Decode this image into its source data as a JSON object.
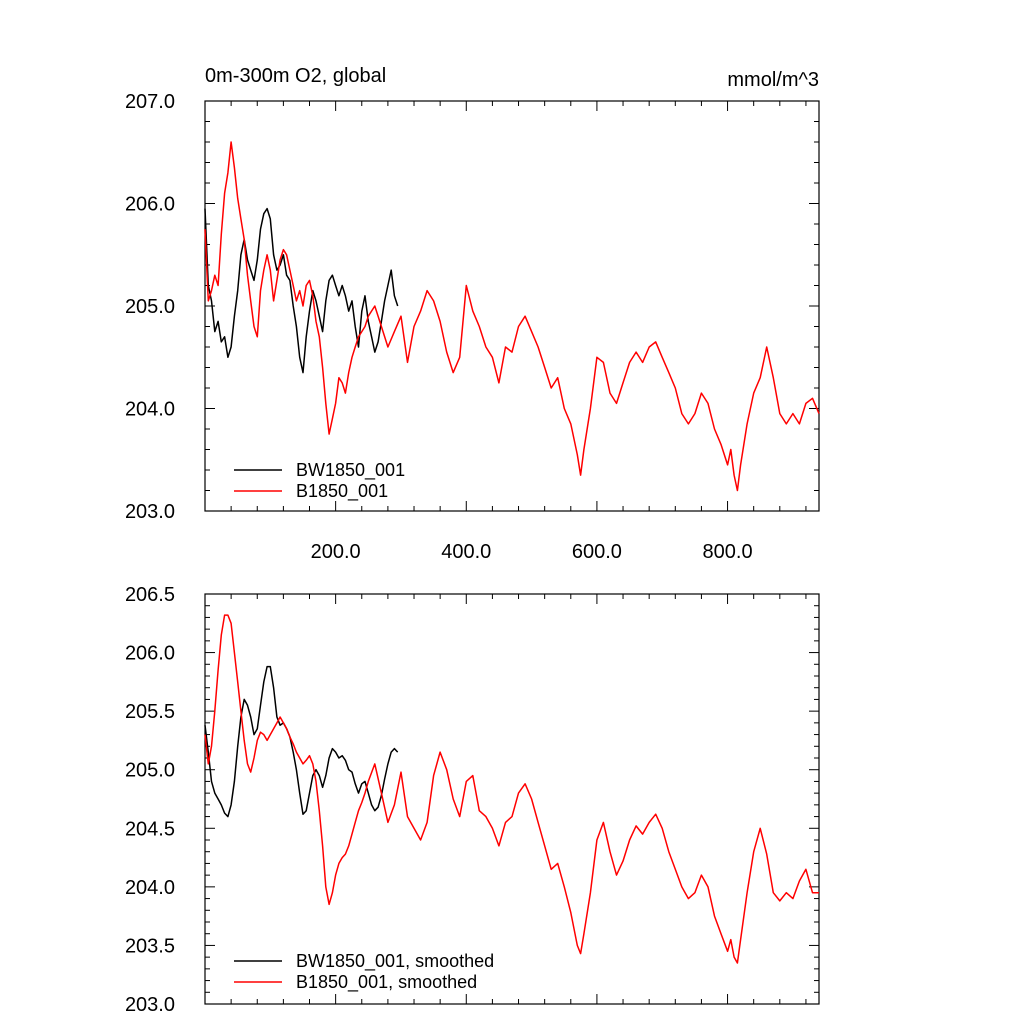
{
  "chart_data": [
    {
      "type": "line",
      "title": "0m-300m O2, global",
      "units": "mmol/m^3",
      "xlim": [
        0,
        940
      ],
      "ylim": [
        203.0,
        207.0
      ],
      "x_ticks": [
        "200.0",
        "400.0",
        "600.0",
        "800.0"
      ],
      "y_ticks": [
        "203.0",
        "204.0",
        "205.0",
        "206.0",
        "207.0"
      ],
      "legend_position": "bottom-left",
      "series": [
        {
          "name": "BW1850_001",
          "color": "#000000",
          "x": [
            0,
            5,
            10,
            15,
            20,
            25,
            30,
            35,
            40,
            45,
            50,
            55,
            60,
            65,
            70,
            75,
            80,
            85,
            90,
            95,
            100,
            105,
            110,
            115,
            120,
            125,
            130,
            135,
            140,
            145,
            150,
            155,
            160,
            165,
            170,
            175,
            180,
            185,
            190,
            195,
            200,
            205,
            210,
            215,
            220,
            225,
            230,
            235,
            240,
            245,
            250,
            255,
            260,
            265,
            270,
            275,
            280,
            285,
            290,
            295
          ],
          "values": [
            205.95,
            205.2,
            205.05,
            204.75,
            204.85,
            204.65,
            204.7,
            204.5,
            204.6,
            204.9,
            205.15,
            205.5,
            205.65,
            205.45,
            205.35,
            205.25,
            205.45,
            205.75,
            205.9,
            205.95,
            205.85,
            205.5,
            205.35,
            205.4,
            205.5,
            205.3,
            205.25,
            205.0,
            204.8,
            204.5,
            204.35,
            204.7,
            204.95,
            205.15,
            205.05,
            204.9,
            204.75,
            205.05,
            205.25,
            205.3,
            205.2,
            205.1,
            205.2,
            205.1,
            204.95,
            205.05,
            204.8,
            204.6,
            204.95,
            205.1,
            204.85,
            204.7,
            204.55,
            204.65,
            204.85,
            205.05,
            205.2,
            205.35,
            205.1,
            205.0
          ]
        },
        {
          "name": "B1850_001",
          "color": "#ff0000",
          "x": [
            0,
            5,
            10,
            15,
            20,
            25,
            30,
            35,
            40,
            45,
            50,
            55,
            60,
            65,
            70,
            75,
            80,
            85,
            90,
            95,
            100,
            105,
            110,
            115,
            120,
            125,
            130,
            135,
            140,
            145,
            150,
            155,
            160,
            165,
            170,
            175,
            180,
            185,
            190,
            195,
            200,
            205,
            210,
            215,
            220,
            225,
            230,
            235,
            240,
            245,
            250,
            260,
            270,
            280,
            290,
            300,
            310,
            320,
            330,
            340,
            350,
            360,
            370,
            380,
            390,
            400,
            410,
            420,
            430,
            440,
            450,
            460,
            470,
            480,
            490,
            500,
            510,
            520,
            530,
            540,
            550,
            560,
            570,
            575,
            580,
            590,
            600,
            610,
            620,
            630,
            640,
            650,
            660,
            670,
            680,
            690,
            700,
            710,
            720,
            730,
            740,
            750,
            760,
            770,
            780,
            790,
            800,
            805,
            810,
            815,
            820,
            830,
            840,
            850,
            860,
            870,
            880,
            890,
            900,
            910,
            920,
            930,
            940
          ],
          "values": [
            205.75,
            205.05,
            205.15,
            205.3,
            205.2,
            205.7,
            206.1,
            206.3,
            206.6,
            206.35,
            206.05,
            205.85,
            205.65,
            205.3,
            205.05,
            204.8,
            204.7,
            205.15,
            205.35,
            205.5,
            205.35,
            205.05,
            205.25,
            205.45,
            205.55,
            205.5,
            205.35,
            205.2,
            205.05,
            205.15,
            205.0,
            205.2,
            205.25,
            205.1,
            204.85,
            204.7,
            204.4,
            204.05,
            203.75,
            203.9,
            204.05,
            204.3,
            204.25,
            204.15,
            204.35,
            204.5,
            204.6,
            204.7,
            204.75,
            204.8,
            204.9,
            205.0,
            204.8,
            204.6,
            204.75,
            204.9,
            204.45,
            204.8,
            204.95,
            205.15,
            205.05,
            204.85,
            204.55,
            204.35,
            204.5,
            205.2,
            204.95,
            204.8,
            204.6,
            204.5,
            204.25,
            204.6,
            204.55,
            204.8,
            204.9,
            204.75,
            204.6,
            204.4,
            204.2,
            204.3,
            204.0,
            203.85,
            203.55,
            203.35,
            203.6,
            204.0,
            204.5,
            204.45,
            204.15,
            204.05,
            204.25,
            204.45,
            204.55,
            204.45,
            204.6,
            204.65,
            204.5,
            204.35,
            204.2,
            203.95,
            203.85,
            203.95,
            204.15,
            204.05,
            203.8,
            203.65,
            203.45,
            203.6,
            203.35,
            203.2,
            203.45,
            203.85,
            204.15,
            204.3,
            204.6,
            204.3,
            203.95,
            203.85,
            203.95,
            203.85,
            204.05,
            204.1,
            203.95
          ]
        }
      ]
    },
    {
      "type": "line",
      "title": "",
      "xlim": [
        0,
        940
      ],
      "ylim": [
        203.0,
        206.5
      ],
      "x_ticks": [],
      "y_ticks": [
        "203.0",
        "203.5",
        "204.0",
        "204.5",
        "205.0",
        "205.5",
        "206.0",
        "206.5"
      ],
      "legend_position": "bottom-left",
      "series": [
        {
          "name": "BW1850_001, smoothed",
          "color": "#000000",
          "x": [
            0,
            5,
            10,
            15,
            20,
            25,
            30,
            35,
            40,
            45,
            50,
            55,
            60,
            65,
            70,
            75,
            80,
            85,
            90,
            95,
            100,
            105,
            110,
            115,
            120,
            125,
            130,
            135,
            140,
            145,
            150,
            155,
            160,
            165,
            170,
            175,
            180,
            185,
            190,
            195,
            200,
            205,
            210,
            215,
            220,
            225,
            230,
            235,
            240,
            245,
            250,
            255,
            260,
            265,
            270,
            275,
            280,
            285,
            290,
            295
          ],
          "values": [
            205.38,
            205.15,
            204.9,
            204.8,
            204.75,
            204.7,
            204.63,
            204.6,
            204.7,
            204.9,
            205.2,
            205.45,
            205.6,
            205.55,
            205.45,
            205.3,
            205.35,
            205.55,
            205.75,
            205.88,
            205.88,
            205.7,
            205.45,
            205.38,
            205.4,
            205.35,
            205.28,
            205.15,
            205.0,
            204.8,
            204.62,
            204.65,
            204.8,
            204.95,
            205.0,
            204.95,
            204.85,
            204.95,
            205.1,
            205.18,
            205.15,
            205.1,
            205.12,
            205.08,
            205.0,
            204.98,
            204.88,
            204.8,
            204.88,
            204.9,
            204.8,
            204.7,
            204.65,
            204.68,
            204.78,
            204.92,
            205.05,
            205.15,
            205.18,
            205.15
          ]
        },
        {
          "name": "B1850_001, smoothed",
          "color": "#ff0000",
          "x": [
            0,
            5,
            10,
            15,
            20,
            25,
            30,
            35,
            40,
            45,
            50,
            55,
            60,
            65,
            70,
            75,
            80,
            85,
            90,
            95,
            100,
            105,
            110,
            115,
            120,
            125,
            130,
            135,
            140,
            145,
            150,
            155,
            160,
            165,
            170,
            175,
            180,
            185,
            190,
            195,
            200,
            205,
            210,
            215,
            220,
            225,
            230,
            235,
            240,
            245,
            250,
            260,
            270,
            280,
            290,
            300,
            310,
            320,
            330,
            340,
            350,
            360,
            370,
            380,
            390,
            400,
            410,
            420,
            430,
            440,
            450,
            460,
            470,
            480,
            490,
            500,
            510,
            520,
            530,
            540,
            550,
            560,
            570,
            575,
            580,
            590,
            600,
            610,
            620,
            630,
            640,
            650,
            660,
            670,
            680,
            690,
            700,
            710,
            720,
            730,
            740,
            750,
            760,
            770,
            780,
            790,
            800,
            805,
            810,
            815,
            820,
            830,
            840,
            850,
            860,
            870,
            880,
            890,
            900,
            910,
            920,
            930,
            940
          ],
          "values": [
            205.3,
            205.05,
            205.2,
            205.5,
            205.85,
            206.15,
            206.32,
            206.32,
            206.25,
            206.0,
            205.75,
            205.5,
            205.25,
            205.05,
            204.98,
            205.1,
            205.25,
            205.32,
            205.3,
            205.25,
            205.3,
            205.35,
            205.4,
            205.45,
            205.4,
            205.35,
            205.28,
            205.22,
            205.15,
            205.1,
            205.05,
            205.08,
            205.12,
            205.05,
            204.9,
            204.65,
            204.35,
            204.0,
            203.85,
            203.95,
            204.1,
            204.2,
            204.25,
            204.28,
            204.35,
            204.45,
            204.55,
            204.65,
            204.72,
            204.8,
            204.9,
            205.05,
            204.8,
            204.55,
            204.7,
            204.98,
            204.6,
            204.5,
            204.4,
            204.55,
            204.95,
            205.15,
            205.0,
            204.75,
            204.6,
            204.9,
            204.95,
            204.65,
            204.6,
            204.5,
            204.35,
            204.55,
            204.6,
            204.8,
            204.88,
            204.75,
            204.55,
            204.35,
            204.15,
            204.2,
            204.0,
            203.78,
            203.5,
            203.43,
            203.6,
            203.95,
            204.4,
            204.55,
            204.3,
            204.1,
            204.22,
            204.4,
            204.52,
            204.45,
            204.55,
            204.62,
            204.5,
            204.3,
            204.15,
            204.0,
            203.9,
            203.95,
            204.1,
            204.0,
            203.75,
            203.6,
            203.45,
            203.55,
            203.4,
            203.35,
            203.55,
            203.95,
            204.3,
            204.5,
            204.28,
            203.95,
            203.88,
            203.95,
            203.9,
            204.05,
            204.15,
            203.95,
            203.95
          ]
        }
      ]
    }
  ]
}
